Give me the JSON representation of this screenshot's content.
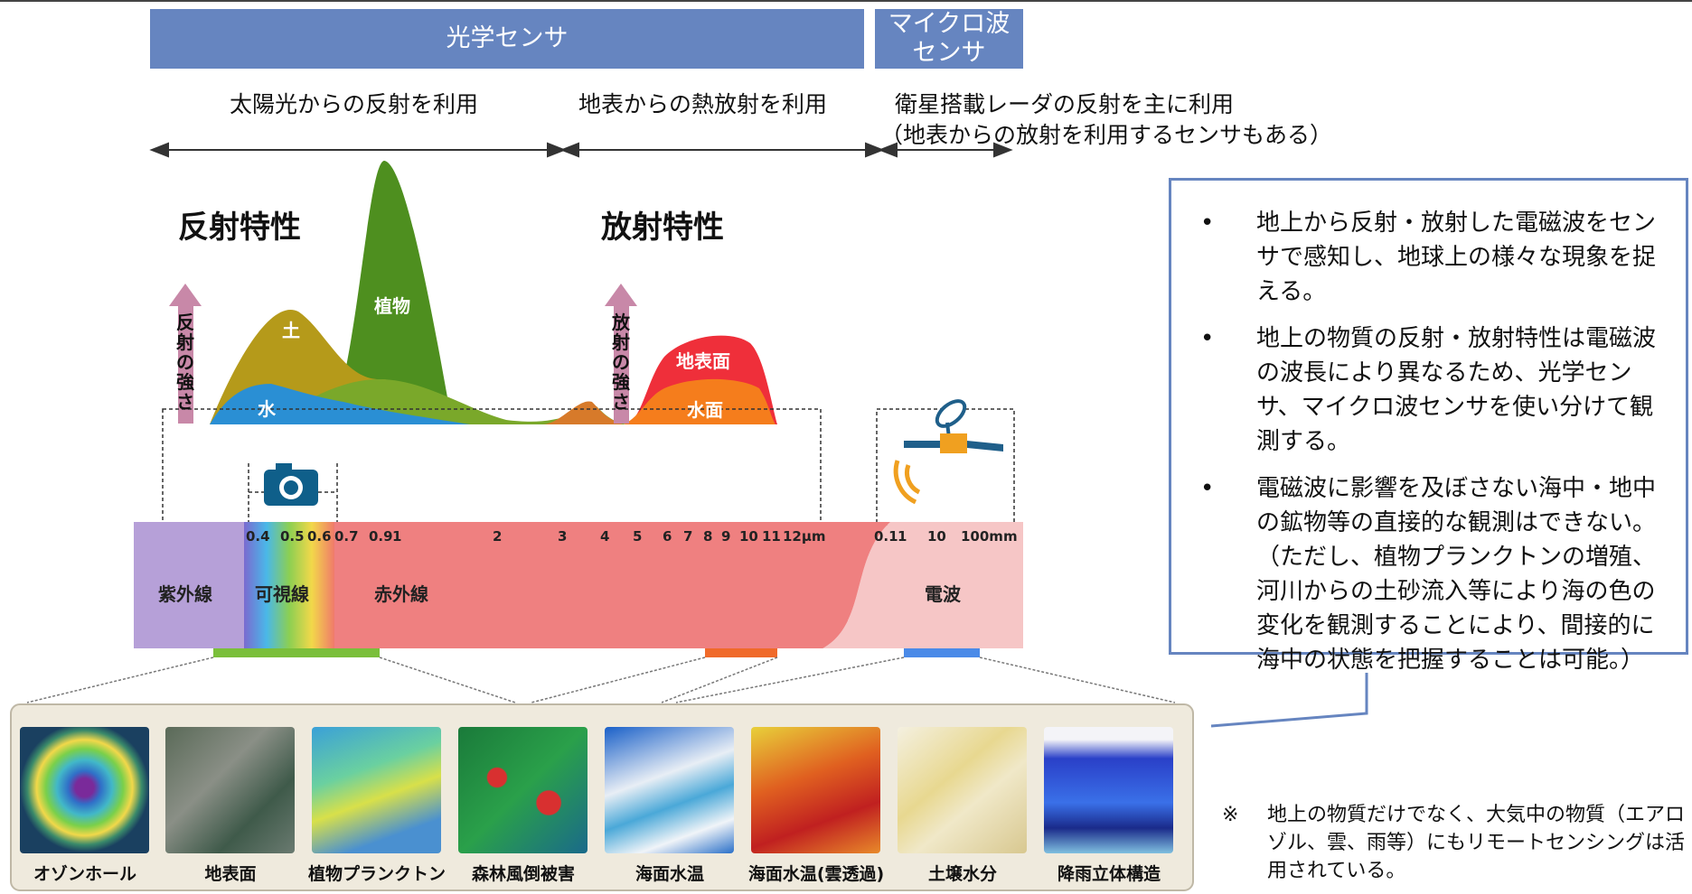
{
  "headers": {
    "optical": "光学センサ",
    "microwave": "マイクロ波\nセンサ"
  },
  "captions": {
    "solar": "太陽光からの反射を利用",
    "thermal": "地表からの熱放射を利用",
    "radar_line1": "衛星搭載レーダの反射を主に利用",
    "radar_line2": "（地表からの放射を利用するセンサもある）"
  },
  "diagram": {
    "reflect_title": "反射特性",
    "emit_title": "放射特性",
    "reflect_arrow": "反射の強さ",
    "emit_arrow": "放射の強さ",
    "labels": {
      "soil": "土",
      "plant": "植物",
      "water": "水",
      "ground": "地表面",
      "water_surface": "水面"
    },
    "colors": {
      "plant": "#4e8f1f",
      "soil": "#b59a1a",
      "water": "#2a8fd4",
      "ground": "#ef2f3a",
      "water_surface": "#f57d1c",
      "arrow": "#c888a8",
      "optical_header": "#6685c0"
    }
  },
  "spectrum": {
    "ticks_um": [
      "0.4",
      "0.5",
      "0.6",
      "0.7",
      "0.9",
      "1",
      "2",
      "3",
      "4",
      "5",
      "6",
      "7",
      "8",
      "9",
      "10",
      "11",
      "12μm"
    ],
    "ticks_mm": [
      "0.1",
      "1",
      "10",
      "100mm"
    ],
    "bands": {
      "uv": "紫外線",
      "visible": "可視線",
      "ir": "赤外線",
      "radio": "電波"
    }
  },
  "images": [
    {
      "caption": "オゾンホール",
      "icon": "ozone-hole-image"
    },
    {
      "caption": "地表面",
      "icon": "land-surface-image"
    },
    {
      "caption": "植物プランクトン",
      "icon": "phytoplankton-image"
    },
    {
      "caption": "森林風倒被害",
      "icon": "forest-damage-image"
    },
    {
      "caption": "海面水温",
      "icon": "sea-temp-image"
    },
    {
      "caption": "海面水温(雲透過)",
      "icon": "sea-temp-cloud-image"
    },
    {
      "caption": "土壌水分",
      "icon": "soil-moisture-image"
    },
    {
      "caption": "降雨立体構造",
      "icon": "rain-structure-image"
    }
  ],
  "info": [
    "地上から反射・放射した電磁波をセンサで感知し、地球上の様々な現象を捉える。",
    "地上の物質の反射・放射特性は電磁波の波長により異なるため、光学センサ、マイクロ波センサを使い分けて観測する。",
    "電磁波に影響を及ぼさない海中・地中の鉱物等の直接的な観測はできない。（ただし、植物プランクトンの増殖、河川からの土砂流入等により海の色の変化を観測することにより、間接的に海中の状態を把握することは可能。）"
  ],
  "note": {
    "mark": "※",
    "text": "地上の物質だけでなく、大気中の物質（エアロゾル、雲、雨等）にもリモートセンシングは活用されている。"
  }
}
